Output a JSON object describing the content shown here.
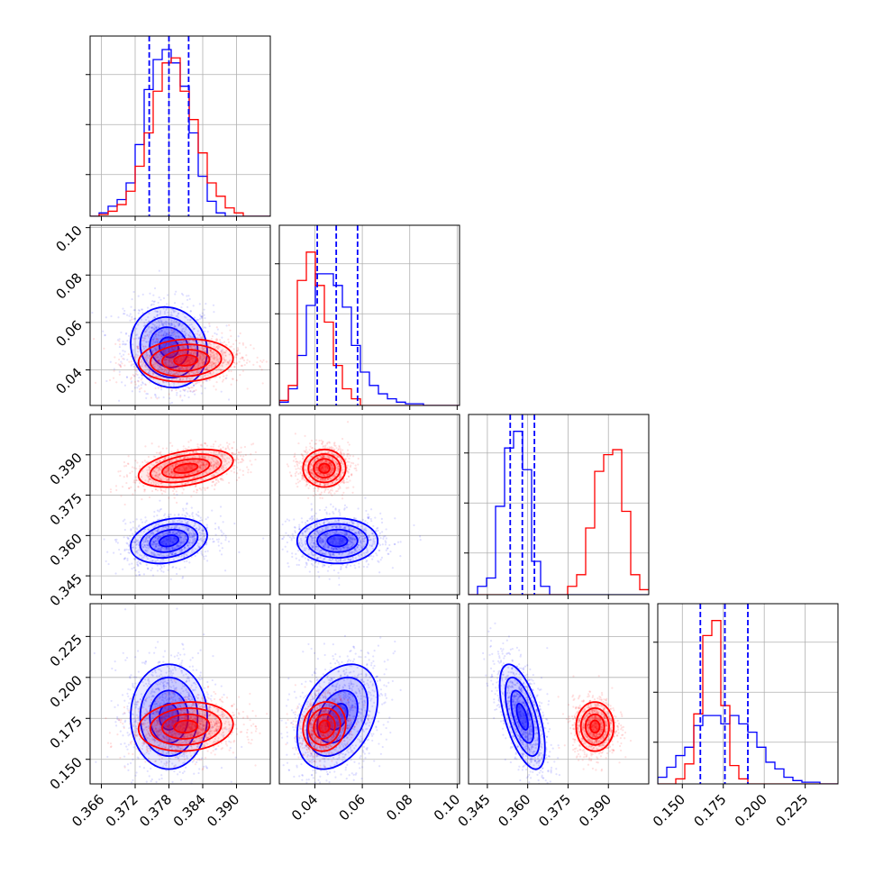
{
  "colors": {
    "series_a": "#0000ff",
    "series_b": "#ff0000"
  },
  "chart_data": {
    "type": "corner",
    "grid": true,
    "parameters": [
      {
        "range": [
          0.364,
          0.396
        ],
        "ticks": [
          0.366,
          0.372,
          0.378,
          0.384,
          0.39
        ],
        "tick_labels": [
          "0.366",
          "0.372",
          "0.378",
          "0.384",
          "0.390"
        ]
      },
      {
        "range": [
          0.025,
          0.101
        ],
        "ticks": [
          0.04,
          0.06,
          0.08,
          0.1
        ],
        "tick_labels": [
          "0.04",
          "0.06",
          "0.08",
          "0.10"
        ]
      },
      {
        "range": [
          0.338,
          0.405
        ],
        "ticks": [
          0.345,
          0.36,
          0.375,
          0.39
        ],
        "tick_labels": [
          "0.345",
          "0.360",
          "0.375",
          "0.390"
        ]
      },
      {
        "range": [
          0.135,
          0.245
        ],
        "ticks": [
          0.15,
          0.175,
          0.2,
          0.225
        ],
        "tick_labels": [
          "0.150",
          "0.175",
          "0.200",
          "0.225"
        ]
      }
    ],
    "series": [
      {
        "color": "#0000ff",
        "means": [
          0.378,
          0.0495,
          0.358,
          0.176
        ],
        "stds": [
          0.0034,
          0.0085,
          0.0042,
          0.016
        ],
        "quantiles": [
          [
            0.3745,
            0.378,
            0.3815
          ],
          [
            0.041,
            0.049,
            0.058
          ],
          [
            0.3535,
            0.358,
            0.3625
          ],
          [
            0.161,
            0.176,
            0.19
          ]
        ],
        "correlations": {
          "0-1": -0.1,
          "0-2": 0.25,
          "0-3": 0.0,
          "1-2": 0.0,
          "1-3": 0.35,
          "2-3": -0.6
        },
        "histograms": [
          [
            0.0,
            0.02,
            0.06,
            0.1,
            0.2,
            0.43,
            0.76,
            0.94,
            1.0,
            0.92,
            0.78,
            0.5,
            0.24,
            0.09,
            0.02,
            0.0,
            0.0,
            0.0,
            0.0,
            0.0
          ],
          [
            0.02,
            0.1,
            0.3,
            0.6,
            0.79,
            0.79,
            0.72,
            0.59,
            0.36,
            0.2,
            0.12,
            0.07,
            0.04,
            0.02,
            0.01,
            0.01,
            0.0,
            0.0,
            0.0,
            0.0
          ],
          [
            0.0,
            0.05,
            0.1,
            0.53,
            0.88,
            0.98,
            0.75,
            0.2,
            0.05,
            0.0,
            0.0,
            0.0,
            0.0,
            0.0,
            0.0,
            0.0,
            0.0,
            0.0,
            0.0,
            0.0
          ],
          [
            0.04,
            0.1,
            0.17,
            0.22,
            0.35,
            0.41,
            0.41,
            0.36,
            0.41,
            0.36,
            0.31,
            0.22,
            0.13,
            0.09,
            0.04,
            0.02,
            0.01,
            0.01,
            0.0,
            0.0
          ]
        ]
      },
      {
        "color": "#ff0000",
        "means": [
          0.381,
          0.044,
          0.385,
          0.17
        ],
        "stds": [
          0.0042,
          0.0045,
          0.0035,
          0.0075
        ],
        "correlations": {
          "0-1": 0.1,
          "0-2": 0.4,
          "0-3": 0.1,
          "1-2": 0.0,
          "1-3": 0.1,
          "2-3": 0.0
        },
        "histograms": [
          [
            0.0,
            0.01,
            0.03,
            0.07,
            0.15,
            0.3,
            0.5,
            0.75,
            0.92,
            0.95,
            0.75,
            0.58,
            0.38,
            0.2,
            0.12,
            0.05,
            0.02,
            0.0,
            0.0,
            0.0
          ],
          [
            0.03,
            0.12,
            0.75,
            0.92,
            0.72,
            0.5,
            0.24,
            0.1,
            0.04,
            0.0,
            0.0,
            0.0,
            0.0,
            0.0,
            0.0,
            0.0,
            0.0,
            0.0,
            0.0,
            0.0
          ],
          [
            0.0,
            0.0,
            0.0,
            0.0,
            0.0,
            0.0,
            0.0,
            0.0,
            0.0,
            0.0,
            0.0,
            0.05,
            0.12,
            0.4,
            0.74,
            0.84,
            0.87,
            0.5,
            0.12,
            0.03
          ],
          [
            0.0,
            0.0,
            0.03,
            0.12,
            0.42,
            0.89,
            0.98,
            0.47,
            0.11,
            0.03,
            0.0,
            0.0,
            0.0,
            0.0,
            0.0,
            0.0,
            0.0,
            0.0,
            0.0,
            0.0
          ]
        ]
      }
    ]
  }
}
